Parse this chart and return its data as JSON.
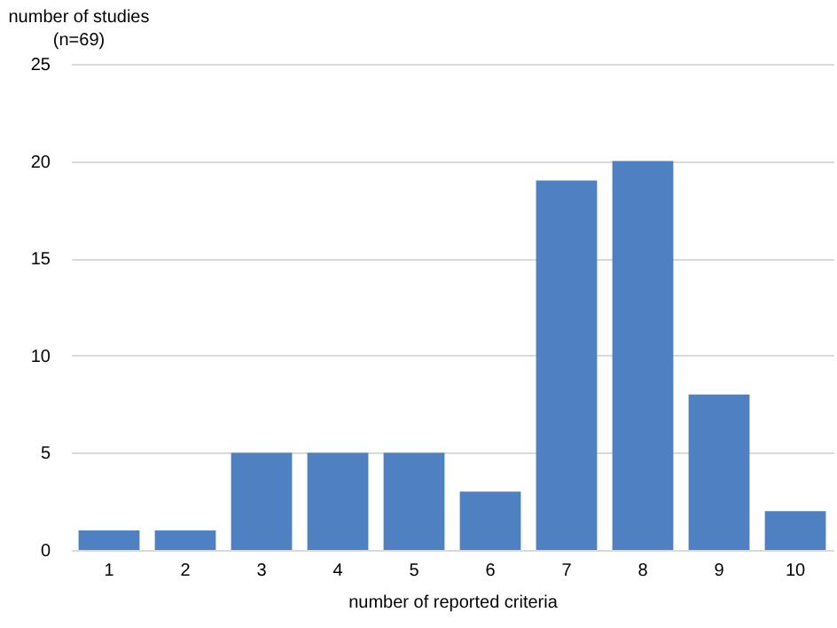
{
  "chart_data": {
    "type": "bar",
    "xlabel": "number of reported criteria",
    "ylabel": "number of studies\n(n=69)",
    "categories": [
      "1",
      "2",
      "3",
      "4",
      "5",
      "6",
      "7",
      "8",
      "9",
      "10"
    ],
    "values": [
      1,
      1,
      5,
      5,
      5,
      3,
      19,
      20,
      8,
      2
    ],
    "color": "#4f81c2",
    "ylim": [
      0,
      25
    ],
    "yticks": [
      0,
      5,
      10,
      15,
      20,
      25
    ],
    "grid": "y"
  }
}
